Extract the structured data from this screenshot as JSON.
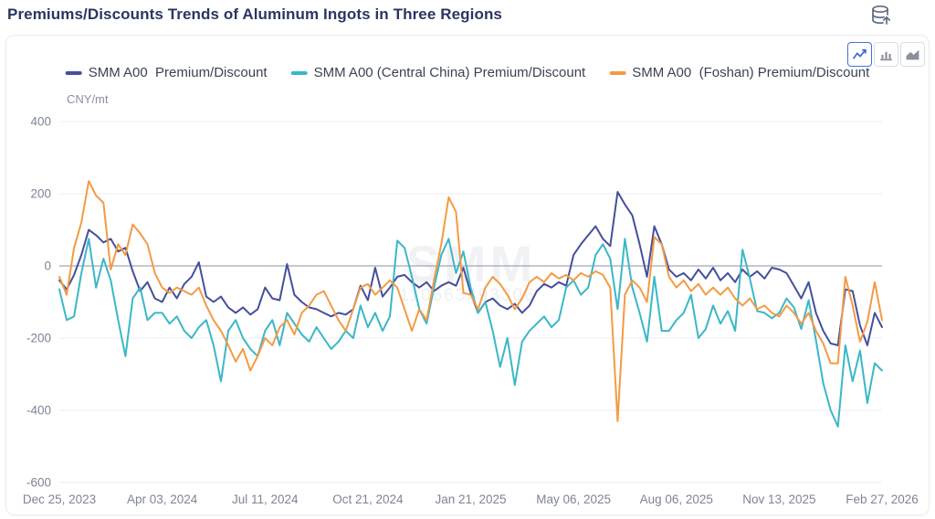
{
  "header": {
    "title": "Premiums/Discounts Trends of Aluminum Ingots in Three Regions",
    "export_icon": "database-upload-icon"
  },
  "toolbar": {
    "chart_types": [
      {
        "name": "line-chart",
        "active": true
      },
      {
        "name": "bar-chart",
        "active": false
      },
      {
        "name": "area-chart",
        "active": false
      }
    ],
    "active_border_color": "#4170d8"
  },
  "legend": {
    "items": [
      {
        "label": "SMM A00  Premium/Discount",
        "color": "#454f9c"
      },
      {
        "label": "SMM A00 (Central China) Premium/Discount",
        "color": "#3ab7c8"
      },
      {
        "label": "SMM A00  (Foshan) Premium/Discount",
        "color": "#f49a44"
      }
    ]
  },
  "watermark": {
    "line1": "SMM",
    "line2": "110663393306"
  },
  "chart_data": {
    "type": "line",
    "title": "Premiums/Discounts Trends of Aluminum Ingots in Three Regions",
    "unit": "CNY/mt",
    "ylabel": "CNY/mt",
    "ylim": [
      -600,
      400
    ],
    "y_ticks": [
      400,
      200,
      0,
      -200,
      -400,
      -600
    ],
    "grid": "horizontal-only",
    "zero_line": true,
    "legend_position": "top-center",
    "n_points": 113,
    "x_tick_labels": [
      "Dec 25, 2023",
      "Apr 03, 2024",
      "Jul 11, 2024",
      "Oct 21, 2024",
      "Jan 21, 2025",
      "May 06, 2025",
      "Aug 06, 2025",
      "Nov 13, 2025",
      "Feb 27, 2026"
    ],
    "x_tick_indices": [
      0,
      14,
      28,
      42,
      56,
      70,
      84,
      98,
      112
    ],
    "series": [
      {
        "name": "SMM A00  Premium/Discount",
        "color": "#454f9c",
        "values": [
          -40,
          -65,
          -25,
          30,
          100,
          85,
          65,
          75,
          40,
          50,
          -15,
          -70,
          -45,
          -90,
          -100,
          -60,
          -90,
          -50,
          -30,
          10,
          -85,
          -100,
          -85,
          -115,
          -130,
          -115,
          -135,
          -120,
          -60,
          -90,
          -95,
          5,
          -80,
          -100,
          -115,
          -120,
          -130,
          -140,
          -130,
          -135,
          -120,
          -55,
          -95,
          -5,
          -85,
          -60,
          -30,
          -25,
          -45,
          -60,
          -45,
          -70,
          -55,
          -45,
          -55,
          -5,
          -75,
          -130,
          -100,
          -90,
          -110,
          -120,
          -105,
          -130,
          -110,
          -70,
          -50,
          -60,
          -45,
          -55,
          30,
          60,
          85,
          110,
          75,
          55,
          205,
          170,
          140,
          60,
          -30,
          110,
          60,
          -10,
          -30,
          -20,
          -40,
          -10,
          -35,
          -5,
          -40,
          -20,
          -45,
          -10,
          -30,
          -15,
          -35,
          -5,
          -10,
          -20,
          -55,
          -90,
          -45,
          -130,
          -180,
          -215,
          -220,
          -65,
          -70,
          -165,
          -220,
          -130,
          -170
        ]
      },
      {
        "name": "SMM A00 (Central China) Premium/Discount",
        "color": "#3ab7c8",
        "values": [
          -65,
          -150,
          -140,
          -20,
          75,
          -60,
          20,
          -40,
          -150,
          -250,
          -90,
          -60,
          -150,
          -130,
          -130,
          -160,
          -140,
          -180,
          -200,
          -170,
          -150,
          -220,
          -320,
          -180,
          -150,
          -200,
          -230,
          -250,
          -180,
          -150,
          -220,
          -130,
          -160,
          -190,
          -210,
          -170,
          -200,
          -230,
          -210,
          -180,
          -200,
          -110,
          -170,
          -130,
          -180,
          -140,
          70,
          50,
          -30,
          -120,
          -160,
          -60,
          30,
          75,
          -20,
          40,
          -60,
          -130,
          -100,
          -180,
          -280,
          -200,
          -330,
          -210,
          -180,
          -160,
          -140,
          -170,
          -150,
          -60,
          -40,
          -80,
          -60,
          30,
          60,
          20,
          -120,
          75,
          -60,
          -130,
          -210,
          -30,
          -180,
          -180,
          -150,
          -130,
          -80,
          -200,
          -175,
          -110,
          -160,
          -125,
          -180,
          45,
          -35,
          -125,
          -130,
          -145,
          -130,
          -90,
          -115,
          -175,
          -95,
          -205,
          -325,
          -400,
          -445,
          -220,
          -320,
          -235,
          -380,
          -270,
          -290
        ]
      },
      {
        "name": "SMM A00  (Foshan) Premium/Discount",
        "color": "#f49a44",
        "values": [
          -30,
          -80,
          50,
          120,
          235,
          195,
          175,
          -10,
          60,
          30,
          115,
          90,
          60,
          -20,
          -60,
          -75,
          -60,
          -70,
          -80,
          -60,
          -110,
          -150,
          -180,
          -220,
          -265,
          -230,
          -290,
          -250,
          -200,
          -220,
          -170,
          -150,
          -190,
          -130,
          -110,
          -80,
          -70,
          -110,
          -150,
          -180,
          -120,
          -60,
          -50,
          -80,
          -60,
          -40,
          -60,
          -120,
          -180,
          -120,
          -150,
          -40,
          60,
          190,
          150,
          -75,
          -80,
          -120,
          -60,
          -30,
          -50,
          -80,
          -120,
          -90,
          -45,
          -30,
          -45,
          -20,
          -35,
          -25,
          -40,
          -20,
          -30,
          -15,
          -25,
          -60,
          -430,
          -80,
          -40,
          -60,
          -100,
          80,
          60,
          -30,
          -60,
          -40,
          -70,
          -50,
          -80,
          -60,
          -80,
          -60,
          -90,
          -110,
          -90,
          -120,
          -110,
          -130,
          -140,
          -110,
          -130,
          -160,
          -130,
          -180,
          -215,
          -270,
          -270,
          -30,
          -110,
          -210,
          -155,
          -45,
          -150
        ]
      }
    ],
    "colors": {
      "grid_line": "#e9ecf4",
      "zero_line": "#8d93a1",
      "axis_text": "#7e8494"
    }
  }
}
